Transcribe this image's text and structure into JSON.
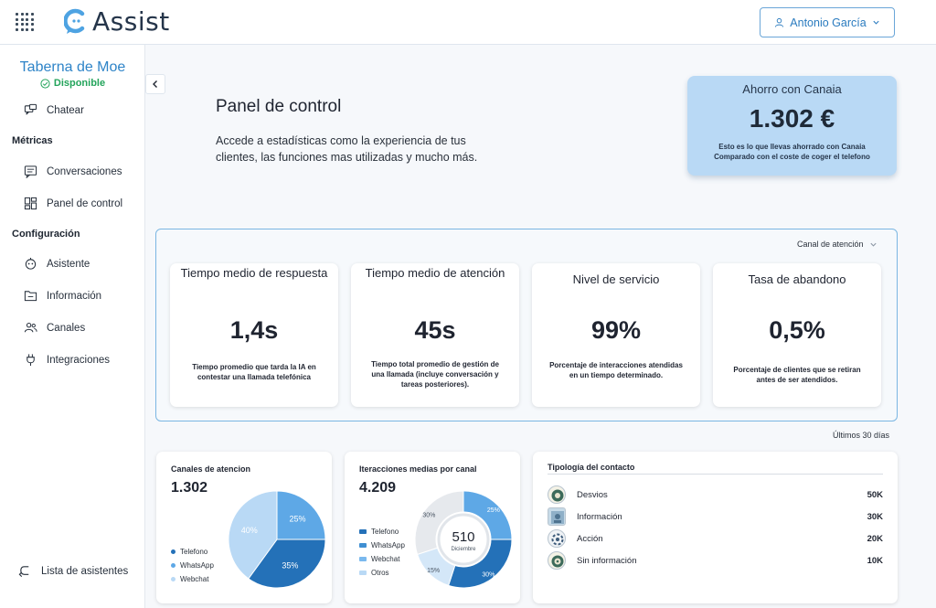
{
  "app": {
    "brand": "Assist"
  },
  "user": {
    "name": "Antonio García"
  },
  "sidebar": {
    "business_name": "Taberna de Moe",
    "status": "Disponible",
    "chat": "Chatear",
    "section_metrics": "Métricas",
    "conversations": "Conversaciones",
    "dashboard": "Panel de control",
    "section_config": "Configuración",
    "assistant": "Asistente",
    "information": "Información",
    "channels": "Canales",
    "integrations": "Integraciones",
    "assistants_list": "Lista de asistentes"
  },
  "header": {
    "title": "Panel de control",
    "description": "Accede a estadísticas como la experiencia de tus clientes, las funciones mas utilizadas y mucho más."
  },
  "savings": {
    "title": "Ahorro con Canaia",
    "value": "1.302 €",
    "note_line1": "Esto es lo que llevas ahorrado con Canaia",
    "note_line2": "Comparado con el coste de coger el telefono"
  },
  "filter": {
    "channel_label": "Canal de atención"
  },
  "kpis": [
    {
      "title": "Tiempo medio de respuesta",
      "value": "1,4s",
      "desc": "Tiempo promedio que tarda la IA en contestar una llamada telefónica"
    },
    {
      "title": "Tiempo medio de atención",
      "value": "45s",
      "desc": "Tiempo total promedio de gestión de una llamada (incluye conversación y tareas posteriores)."
    },
    {
      "title": "Nivel de servicio",
      "value": "99%",
      "desc": "Porcentaje de interacciones atendidas en un tiempo determinado."
    },
    {
      "title": "Tasa de abandono",
      "value": "0,5%",
      "desc": "Porcentaje de clientes que se retiran antes de ser atendidos."
    }
  ],
  "period": "Últimos 30 días",
  "channels_card": {
    "title": "Canales de atencion",
    "total": "1.302",
    "legend": [
      "Telefono",
      "WhatsApp",
      "Webchat"
    ]
  },
  "interactions_card": {
    "title": "Iteracciones medias por canal",
    "total": "4.209",
    "center_value": "510",
    "center_label": "Diciembre",
    "legend": [
      "Telefono",
      "WhatsApp",
      "Webchat",
      "Otros"
    ]
  },
  "typology": {
    "title": "Tipología del contacto",
    "rows": [
      {
        "label": "Desvios",
        "value": "50K"
      },
      {
        "label": "Información",
        "value": "30K"
      },
      {
        "label": "Acción",
        "value": "20K"
      },
      {
        "label": "Sin información",
        "value": "10K"
      }
    ]
  },
  "chart_data": [
    {
      "type": "pie",
      "categories": [
        "Telefono",
        "WhatsApp",
        "Webchat"
      ],
      "values": [
        35,
        25,
        40
      ],
      "labels": [
        "35%",
        "25%",
        "40%"
      ],
      "colors": [
        "#2471b8",
        "#5ea8e6",
        "#b9d9f5"
      ]
    },
    {
      "type": "pie",
      "categories": [
        "Telefono",
        "WhatsApp",
        "Webchat",
        "Otros"
      ],
      "values": [
        30,
        25,
        15,
        30
      ],
      "labels": [
        "30%",
        "25%",
        "15%",
        "30%"
      ],
      "colors": [
        "#2471b8",
        "#5ea8e6",
        "#b9d9f5",
        "#e4e8ec"
      ]
    }
  ],
  "colors": {
    "accent": "#2e84c8",
    "status_ok": "#23a45b"
  }
}
